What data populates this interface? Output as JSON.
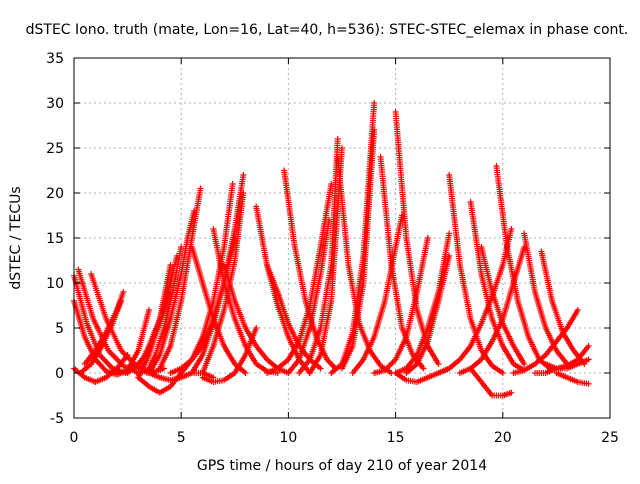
{
  "chart_data": {
    "type": "scatter",
    "title": "dSTEC Iono. truth (mate, Lon=16, Lat=40, h=536): STEC-STEC_elemax in phase cont.",
    "xlabel": "GPS time / hours of day 210 of year 2014",
    "ylabel": "dSTEC  / TECUs",
    "xlim": [
      0,
      25
    ],
    "ylim": [
      -5,
      35
    ],
    "xticks": [
      0,
      5,
      10,
      15,
      20,
      25
    ],
    "yticks": [
      -5,
      0,
      5,
      10,
      15,
      20,
      25,
      30,
      35
    ],
    "grid": true,
    "marker": "+",
    "color": "#ff0000",
    "series": [
      {
        "x": [
          0.0,
          0.5,
          1.0,
          1.5,
          2.0,
          2.5,
          3.0,
          3.5
        ],
        "y": [
          8.0,
          4.0,
          1.5,
          0.2,
          -0.2,
          0.3,
          2.5,
          7.0
        ]
      },
      {
        "x": [
          0.0,
          0.6,
          1.2,
          1.8,
          2.4,
          3.0
        ],
        "y": [
          10.8,
          5.5,
          2.0,
          0.5,
          0.0,
          1.0
        ]
      },
      {
        "x": [
          0.2,
          0.9,
          1.6,
          2.3,
          3.0,
          3.6
        ],
        "y": [
          11.5,
          6.0,
          2.5,
          0.8,
          0.0,
          0.3
        ]
      },
      {
        "x": [
          0.8,
          1.5,
          2.2,
          2.9,
          3.6,
          4.2
        ],
        "y": [
          11.0,
          6.0,
          2.5,
          0.8,
          0.0,
          0.5
        ]
      },
      {
        "x": [
          0.0,
          0.5,
          1.0,
          1.5,
          2.0,
          2.5
        ],
        "y": [
          0.5,
          -0.5,
          -1.0,
          -0.5,
          0.5,
          2.0
        ]
      },
      {
        "x": [
          0.5,
          1.0,
          1.5,
          2.0,
          2.3
        ],
        "y": [
          1.0,
          2.5,
          4.5,
          7.0,
          9.0
        ]
      },
      {
        "x": [
          0.3,
          0.8,
          1.3,
          1.8,
          2.2
        ],
        "y": [
          0.0,
          1.0,
          3.0,
          5.5,
          8.0
        ]
      },
      {
        "x": [
          2.5,
          3.0,
          3.5,
          4.0,
          4.5
        ],
        "y": [
          0.0,
          1.0,
          2.5,
          5.5,
          9.0
        ]
      },
      {
        "x": [
          3.0,
          3.5,
          4.0,
          4.5,
          4.8
        ],
        "y": [
          0.5,
          3.0,
          6.0,
          10.0,
          13.0
        ]
      },
      {
        "x": [
          3.4,
          3.8,
          4.2,
          4.6,
          5.0
        ],
        "y": [
          0.0,
          2.0,
          5.0,
          9.0,
          14.0
        ]
      },
      {
        "x": [
          3.0,
          3.5,
          4.0,
          4.5
        ],
        "y": [
          -0.5,
          2.0,
          6.0,
          12.0
        ]
      },
      {
        "x": [
          3.5,
          4.0,
          4.5,
          5.0,
          5.3,
          5.6
        ],
        "y": [
          0.0,
          2.0,
          6.0,
          11.0,
          15.0,
          18.0
        ]
      },
      {
        "x": [
          4.0,
          4.5,
          5.0,
          5.5,
          5.9
        ],
        "y": [
          0.5,
          3.0,
          8.0,
          15.0,
          20.5
        ]
      },
      {
        "x": [
          3.0,
          3.5,
          4.0,
          4.5,
          5.0
        ],
        "y": [
          -0.5,
          -1.5,
          -2.2,
          -1.5,
          0.0
        ]
      },
      {
        "x": [
          3.5,
          4.0,
          4.5,
          5.0,
          5.5,
          6.0,
          6.5
        ],
        "y": [
          0.0,
          -0.5,
          -0.8,
          -0.5,
          0.0,
          0.0,
          -0.5
        ]
      },
      {
        "x": [
          4.5,
          5.0,
          5.5,
          6.0,
          6.5,
          7.0,
          7.5
        ],
        "y": [
          0.0,
          0.5,
          1.5,
          3.0,
          6.0,
          10.0,
          15.0
        ]
      },
      {
        "x": [
          5.0,
          5.5,
          6.0,
          6.5,
          7.0,
          7.4
        ],
        "y": [
          0.0,
          1.5,
          4.0,
          8.0,
          14.0,
          21.0
        ]
      },
      {
        "x": [
          5.5,
          6.0,
          6.5,
          7.0,
          7.5,
          7.9
        ],
        "y": [
          0.0,
          2.0,
          5.5,
          10.0,
          16.0,
          22.0
        ]
      },
      {
        "x": [
          6.0,
          6.5,
          7.0,
          7.5,
          7.9
        ],
        "y": [
          0.0,
          3.0,
          7.0,
          12.5,
          20.0
        ]
      },
      {
        "x": [
          5.5,
          6.0,
          6.5,
          7.0,
          7.5,
          8.0
        ],
        "y": [
          14.0,
          10.0,
          6.0,
          3.0,
          1.0,
          0.0
        ]
      },
      {
        "x": [
          6.5,
          7.0,
          7.5,
          8.0,
          8.5,
          9.0,
          9.5
        ],
        "y": [
          16.0,
          10.0,
          6.0,
          3.0,
          1.0,
          0.2,
          0.0
        ]
      },
      {
        "x": [
          7.0,
          7.5,
          8.0,
          8.5,
          9.0,
          9.5,
          10.0
        ],
        "y": [
          12.0,
          8.0,
          5.0,
          3.0,
          1.5,
          0.5,
          0.0
        ]
      },
      {
        "x": [
          6.0,
          6.5,
          7.0,
          7.5,
          8.0,
          8.5
        ],
        "y": [
          -0.5,
          -1.0,
          -0.8,
          0.0,
          2.0,
          5.0
        ]
      },
      {
        "x": [
          8.5,
          9.0,
          9.5,
          10.0,
          10.5,
          11.0
        ],
        "y": [
          18.5,
          12.0,
          7.5,
          4.0,
          1.5,
          0.0
        ]
      },
      {
        "x": [
          9.0,
          9.5,
          10.0,
          10.5,
          11.0,
          11.5
        ],
        "y": [
          12.0,
          9.0,
          5.5,
          3.0,
          1.5,
          0.5
        ]
      },
      {
        "x": [
          9.8,
          10.3,
          10.8,
          11.3,
          11.8,
          12.2
        ],
        "y": [
          22.5,
          14.0,
          8.0,
          4.0,
          1.5,
          0.5
        ]
      },
      {
        "x": [
          9.0,
          9.5,
          10.0,
          10.5,
          11.0,
          11.5,
          12.0
        ],
        "y": [
          0.0,
          0.5,
          1.5,
          3.5,
          7.5,
          14.0,
          21.0
        ]
      },
      {
        "x": [
          10.0,
          10.5,
          11.0,
          11.5,
          11.9
        ],
        "y": [
          0.0,
          1.5,
          5.0,
          11.0,
          17.0
        ]
      },
      {
        "x": [
          10.5,
          11.0,
          11.5,
          12.0,
          12.3
        ],
        "y": [
          0.0,
          1.5,
          5.0,
          12.0,
          26.0
        ]
      },
      {
        "x": [
          11.0,
          11.5,
          12.0,
          12.5
        ],
        "y": [
          0.0,
          2.0,
          8.0,
          25.0
        ]
      },
      {
        "x": [
          12.0,
          12.5,
          13.0,
          13.5,
          14.0
        ],
        "y": [
          0.0,
          1.0,
          4.5,
          13.0,
          30.0
        ]
      },
      {
        "x": [
          12.5,
          13.0,
          13.5,
          14.0
        ],
        "y": [
          0.5,
          3.0,
          10.0,
          27.0
        ]
      },
      {
        "x": [
          12.3,
          12.8,
          13.3,
          13.8,
          14.3,
          14.8
        ],
        "y": [
          24.0,
          12.0,
          5.5,
          2.5,
          0.8,
          0.0
        ]
      },
      {
        "x": [
          14.3,
          14.8,
          15.3,
          15.8,
          16.3
        ],
        "y": [
          24.0,
          12.0,
          5.0,
          2.0,
          0.5
        ]
      },
      {
        "x": [
          15.0,
          15.5,
          16.0,
          16.5,
          17.0
        ],
        "y": [
          29.0,
          15.0,
          7.0,
          3.0,
          1.0
        ]
      },
      {
        "x": [
          13.0,
          13.5,
          14.0,
          14.5,
          15.0,
          15.3
        ],
        "y": [
          0.0,
          1.5,
          4.0,
          8.0,
          14.0,
          17.5
        ]
      },
      {
        "x": [
          14.0,
          14.5,
          15.0,
          15.5,
          16.0,
          16.5
        ],
        "y": [
          0.0,
          0.3,
          1.5,
          4.0,
          9.0,
          15.0
        ]
      },
      {
        "x": [
          15.0,
          15.5,
          16.0,
          16.5,
          17.0,
          17.5
        ],
        "y": [
          0.0,
          0.5,
          2.0,
          5.0,
          9.0,
          15.5
        ]
      },
      {
        "x": [
          15.5,
          16.0,
          16.5,
          17.0,
          17.5
        ],
        "y": [
          0.0,
          1.0,
          3.5,
          8.0,
          13.0
        ]
      },
      {
        "x": [
          15.0,
          15.5,
          16.0,
          16.5,
          17.0,
          17.5
        ],
        "y": [
          0.0,
          -0.8,
          -1.0,
          -0.5,
          0.0,
          0.5
        ]
      },
      {
        "x": [
          17.5,
          18.0,
          18.5,
          19.0,
          19.5,
          20.0
        ],
        "y": [
          22.0,
          12.0,
          6.0,
          2.5,
          0.8,
          0.0
        ]
      },
      {
        "x": [
          18.5,
          19.0,
          19.5,
          20.0,
          20.5,
          21.0
        ],
        "y": [
          19.0,
          11.0,
          6.0,
          3.0,
          1.0,
          0.3
        ]
      },
      {
        "x": [
          19.0,
          19.5,
          20.0,
          20.5,
          21.0
        ],
        "y": [
          14.0,
          9.0,
          5.5,
          3.0,
          1.0
        ]
      },
      {
        "x": [
          19.7,
          20.2,
          20.7,
          21.2,
          21.7,
          22.2
        ],
        "y": [
          23.0,
          14.0,
          8.0,
          4.0,
          1.5,
          0.5
        ]
      },
      {
        "x": [
          21.0,
          21.5,
          22.0,
          22.5,
          23.0
        ],
        "y": [
          15.5,
          9.0,
          5.0,
          2.5,
          1.0
        ]
      },
      {
        "x": [
          21.8,
          22.3,
          22.8,
          23.3,
          23.8
        ],
        "y": [
          13.5,
          8.0,
          4.5,
          2.5,
          1.0
        ]
      },
      {
        "x": [
          17.0,
          17.5,
          18.0,
          18.5,
          19.0,
          19.5,
          20.0,
          20.4
        ],
        "y": [
          0.0,
          0.5,
          1.5,
          3.0,
          5.5,
          8.5,
          12.0,
          16.0
        ]
      },
      {
        "x": [
          18.0,
          18.5,
          19.0,
          19.5,
          20.0,
          20.5,
          21.0
        ],
        "y": [
          0.0,
          0.5,
          1.5,
          3.5,
          6.0,
          10.0,
          14.0
        ]
      },
      {
        "x": [
          18.5,
          19.0,
          19.5,
          20.0,
          20.4
        ],
        "y": [
          0.5,
          -1.0,
          -2.5,
          -2.5,
          -2.2
        ]
      },
      {
        "x": [
          20.5,
          21.0,
          21.5,
          22.0,
          22.5,
          23.0,
          23.5
        ],
        "y": [
          0.0,
          0.3,
          1.0,
          2.0,
          3.5,
          5.0,
          7.0
        ]
      },
      {
        "x": [
          21.5,
          22.0,
          22.5,
          23.0,
          23.5,
          24.0
        ],
        "y": [
          0.0,
          0.0,
          0.5,
          0.8,
          1.5,
          3.0
        ]
      },
      {
        "x": [
          22.5,
          23.0,
          23.5,
          24.0
        ],
        "y": [
          0.0,
          -0.5,
          -1.0,
          -1.2
        ]
      },
      {
        "x": [
          22.0,
          22.5,
          23.0,
          23.5,
          24.0
        ],
        "y": [
          1.0,
          0.5,
          0.5,
          1.0,
          1.5
        ]
      }
    ]
  }
}
